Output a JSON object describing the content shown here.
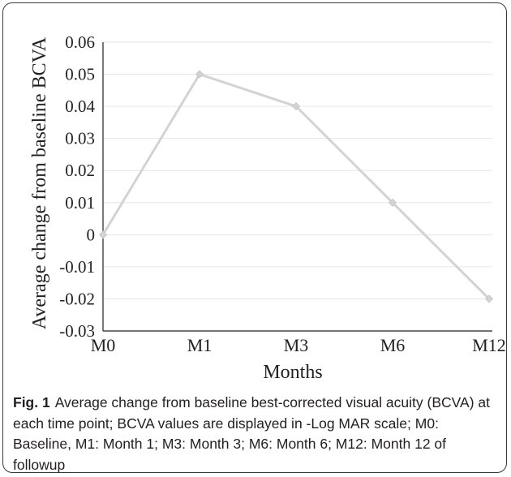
{
  "chart_data": {
    "type": "line",
    "categories": [
      "M0",
      "M1",
      "M3",
      "M6",
      "M12"
    ],
    "series": [
      {
        "values": [
          0,
          0.05,
          0.04,
          0.01,
          -0.02
        ]
      }
    ],
    "xlabel": "Months",
    "ylabel": "Average change from baseline BCVA",
    "ylim": [
      -0.03,
      0.06
    ],
    "yticks": [
      "0.06",
      "0.05",
      "0.04",
      "0.03",
      "0.02",
      "0.01",
      "0",
      "-0.01",
      "-0.02",
      "-0.03"
    ],
    "grid": true,
    "line_color": "#d3d3d3",
    "grid_color": "#e6e6e6"
  },
  "caption": {
    "label": "Fig. 1",
    "text": "Average change from baseline best-corrected visual acuity (BCVA) at each time point; BCVA values are displayed in -Log MAR scale; M0: Baseline, M1: Month 1; M3: Month 3; M6: Month 6; M12: Month 12 of followup"
  }
}
